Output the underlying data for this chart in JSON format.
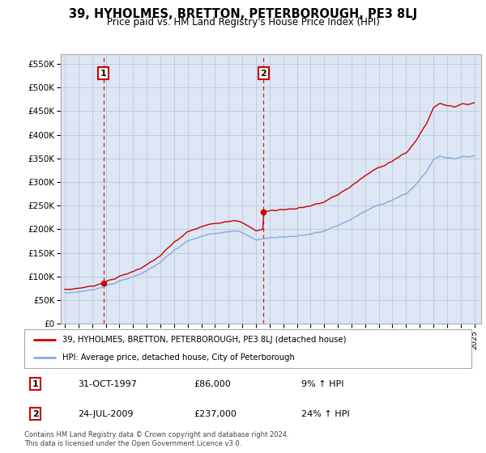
{
  "title": "39, HYHOLMES, BRETTON, PETERBOROUGH, PE3 8LJ",
  "subtitle": "Price paid vs. HM Land Registry's House Price Index (HPI)",
  "ylabel_ticks": [
    "£0",
    "£50K",
    "£100K",
    "£150K",
    "£200K",
    "£250K",
    "£300K",
    "£350K",
    "£400K",
    "£450K",
    "£500K",
    "£550K"
  ],
  "ylim": [
    0,
    570000
  ],
  "ytick_vals": [
    0,
    50000,
    100000,
    150000,
    200000,
    250000,
    300000,
    350000,
    400000,
    450000,
    500000,
    550000
  ],
  "sale1_year": 1997.83,
  "sale1_price": 86000,
  "sale2_year": 2009.55,
  "sale2_price": 237000,
  "sale1_date": "31-OCT-1997",
  "sale1_price_str": "£86,000",
  "sale1_hpi": "9% ↑ HPI",
  "sale2_date": "24-JUL-2009",
  "sale2_price_str": "£237,000",
  "sale2_hpi": "24% ↑ HPI",
  "legend_line1": "39, HYHOLMES, BRETTON, PETERBOROUGH, PE3 8LJ (detached house)",
  "legend_line2": "HPI: Average price, detached house, City of Peterborough",
  "footer": "Contains HM Land Registry data © Crown copyright and database right 2024.\nThis data is licensed under the Open Government Licence v3.0.",
  "price_color": "#cc0000",
  "hpi_color": "#88aadd",
  "bg_color": "#dce6f5",
  "plot_bg": "#ffffff",
  "grid_color": "#c0c8d8"
}
